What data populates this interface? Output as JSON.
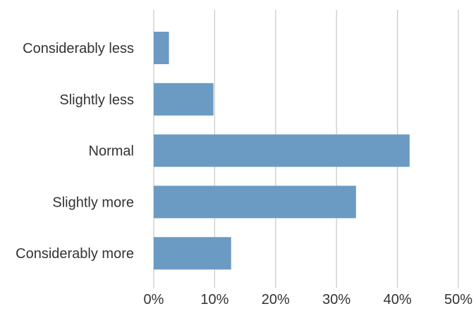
{
  "chart_data": {
    "type": "bar",
    "orientation": "horizontal",
    "categories": [
      "Considerably less",
      "Slightly less",
      "Normal",
      "Slightly more",
      "Considerably more"
    ],
    "values": [
      2.5,
      9.8,
      42.0,
      33.2,
      12.7
    ],
    "value_unit": "%",
    "xlim": [
      0,
      50
    ],
    "x_ticks": [
      "0%",
      "10%",
      "20%",
      "30%",
      "40%",
      "50%"
    ],
    "title": "",
    "xlabel": "",
    "ylabel": "",
    "grid": "vertical",
    "legend": "none",
    "colors": {
      "bar": "#6b9bc3",
      "grid": "#c8c8c8",
      "text": "#333333"
    }
  }
}
